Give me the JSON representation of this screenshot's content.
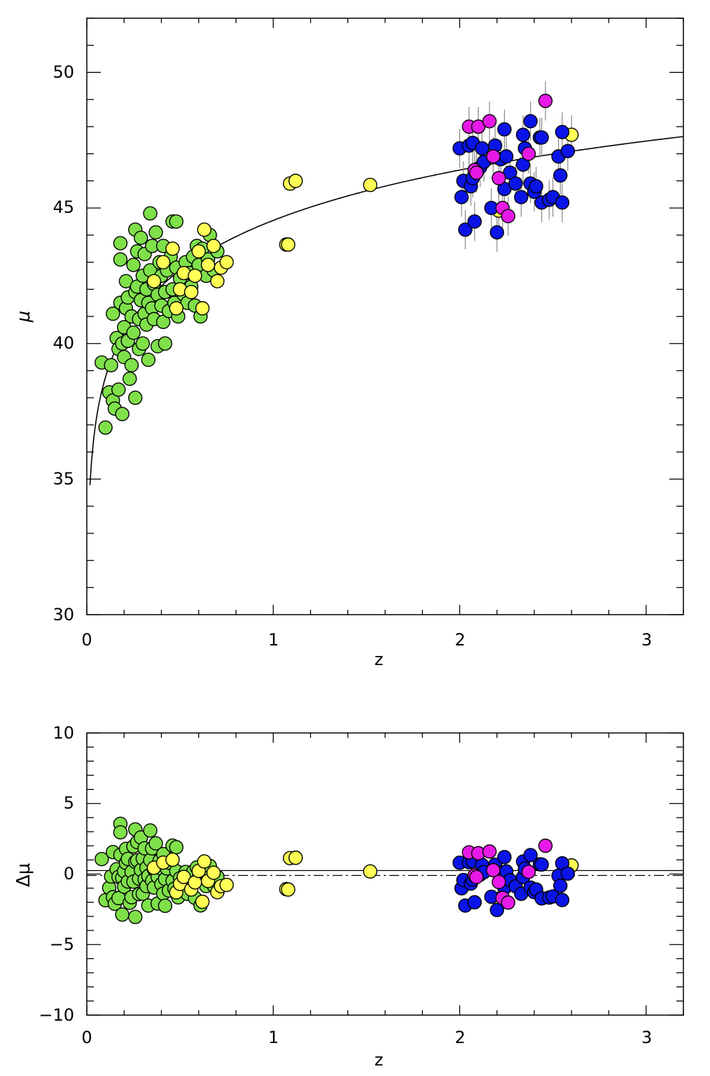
{
  "chart_data": [
    {
      "type": "scatter",
      "title": "",
      "xlabel": "z",
      "ylabel": "μ",
      "xlim": [
        0,
        3.2
      ],
      "ylim": [
        30,
        52
      ],
      "xticks": [
        "0",
        "1",
        "2",
        "3"
      ],
      "yticks": [
        "30",
        "35",
        "40",
        "45",
        "50"
      ],
      "grid": false,
      "legend": "none",
      "series": [
        {
          "color": "#7fe04a",
          "points": [
            [
              0.08,
              39.3
            ],
            [
              0.1,
              36.9
            ],
            [
              0.12,
              38.2
            ],
            [
              0.13,
              39.2
            ],
            [
              0.14,
              41.1
            ],
            [
              0.14,
              37.9
            ],
            [
              0.15,
              37.6
            ],
            [
              0.16,
              40.2
            ],
            [
              0.17,
              38.3
            ],
            [
              0.17,
              39.8
            ],
            [
              0.18,
              43.7
            ],
            [
              0.18,
              43.1
            ],
            [
              0.18,
              41.5
            ],
            [
              0.19,
              40.0
            ],
            [
              0.19,
              37.4
            ],
            [
              0.2,
              40.6
            ],
            [
              0.2,
              39.5
            ],
            [
              0.21,
              41.3
            ],
            [
              0.21,
              42.3
            ],
            [
              0.22,
              40.1
            ],
            [
              0.22,
              41.7
            ],
            [
              0.23,
              38.7
            ],
            [
              0.24,
              39.2
            ],
            [
              0.24,
              41.0
            ],
            [
              0.25,
              42.9
            ],
            [
              0.25,
              40.4
            ],
            [
              0.26,
              44.2
            ],
            [
              0.26,
              41.9
            ],
            [
              0.26,
              38.0
            ],
            [
              0.27,
              43.4
            ],
            [
              0.27,
              42.1
            ],
            [
              0.28,
              40.9
            ],
            [
              0.28,
              39.8
            ],
            [
              0.29,
              41.6
            ],
            [
              0.29,
              43.9
            ],
            [
              0.3,
              42.5
            ],
            [
              0.3,
              40.0
            ],
            [
              0.31,
              41.1
            ],
            [
              0.31,
              43.3
            ],
            [
              0.32,
              42.0
            ],
            [
              0.32,
              40.7
            ],
            [
              0.33,
              41.5
            ],
            [
              0.33,
              39.4
            ],
            [
              0.34,
              44.8
            ],
            [
              0.34,
              42.7
            ],
            [
              0.35,
              41.3
            ],
            [
              0.35,
              43.6
            ],
            [
              0.36,
              40.9
            ],
            [
              0.36,
              42.2
            ],
            [
              0.37,
              44.1
            ],
            [
              0.38,
              41.8
            ],
            [
              0.38,
              39.9
            ],
            [
              0.39,
              43.0
            ],
            [
              0.4,
              41.4
            ],
            [
              0.4,
              42.5
            ],
            [
              0.41,
              40.8
            ],
            [
              0.41,
              43.6
            ],
            [
              0.42,
              41.9
            ],
            [
              0.42,
              40.0
            ],
            [
              0.43,
              42.7
            ],
            [
              0.44,
              41.2
            ],
            [
              0.45,
              43.2
            ],
            [
              0.46,
              42.0
            ],
            [
              0.46,
              44.5
            ],
            [
              0.47,
              41.5
            ],
            [
              0.48,
              42.8
            ],
            [
              0.48,
              44.5
            ],
            [
              0.49,
              41.0
            ],
            [
              0.5,
              42.4
            ],
            [
              0.52,
              41.8
            ],
            [
              0.53,
              43.0
            ],
            [
              0.54,
              41.5
            ],
            [
              0.55,
              42.6
            ],
            [
              0.56,
              42.1
            ],
            [
              0.57,
              43.2
            ],
            [
              0.58,
              41.4
            ],
            [
              0.59,
              43.6
            ],
            [
              0.6,
              42.9
            ],
            [
              0.61,
              41.0
            ],
            [
              0.62,
              43.5
            ],
            [
              0.64,
              42.5
            ],
            [
              0.65,
              43.1
            ],
            [
              0.66,
              44.0
            ],
            [
              0.68,
              42.7
            ],
            [
              0.7,
              43.4
            ]
          ]
        },
        {
          "color": "#ffff55",
          "points": [
            [
              0.36,
              42.3
            ],
            [
              0.41,
              43.0
            ],
            [
              0.46,
              43.5
            ],
            [
              0.48,
              41.3
            ],
            [
              0.5,
              42.0
            ],
            [
              0.52,
              42.6
            ],
            [
              0.56,
              41.9
            ],
            [
              0.58,
              42.5
            ],
            [
              0.6,
              43.4
            ],
            [
              0.62,
              41.3
            ],
            [
              0.63,
              44.2
            ],
            [
              0.65,
              42.9
            ],
            [
              0.68,
              43.6
            ],
            [
              0.7,
              42.3
            ],
            [
              0.72,
              42.8
            ],
            [
              0.75,
              43.0
            ],
            [
              1.07,
              43.65
            ],
            [
              1.08,
              43.65
            ],
            [
              1.09,
              45.9
            ],
            [
              1.12,
              46.0
            ],
            [
              1.52,
              45.85
            ],
            [
              2.21,
              44.9
            ],
            [
              2.6,
              47.7
            ]
          ]
        },
        {
          "color": "#0a14e6",
          "points": [
            [
              2.0,
              47.2
            ],
            [
              2.01,
              45.4
            ],
            [
              2.02,
              46.0
            ],
            [
              2.03,
              44.2
            ],
            [
              2.05,
              47.3
            ],
            [
              2.06,
              45.8
            ],
            [
              2.07,
              46.1
            ],
            [
              2.07,
              47.4
            ],
            [
              2.08,
              44.5
            ],
            [
              2.1,
              48.0
            ],
            [
              2.11,
              46.5
            ],
            [
              2.12,
              47.2
            ],
            [
              2.13,
              46.7
            ],
            [
              2.17,
              45.0
            ],
            [
              2.19,
              47.3
            ],
            [
              2.2,
              44.1
            ],
            [
              2.22,
              46.8
            ],
            [
              2.24,
              45.7
            ],
            [
              2.24,
              47.9
            ],
            [
              2.25,
              46.9
            ],
            [
              2.27,
              46.3
            ],
            [
              2.3,
              45.9
            ],
            [
              2.33,
              45.4
            ],
            [
              2.34,
              46.6
            ],
            [
              2.34,
              47.7
            ],
            [
              2.35,
              47.2
            ],
            [
              2.38,
              48.2
            ],
            [
              2.38,
              45.9
            ],
            [
              2.4,
              45.6
            ],
            [
              2.41,
              45.8
            ],
            [
              2.43,
              47.6
            ],
            [
              2.44,
              47.6
            ],
            [
              2.44,
              45.2
            ],
            [
              2.48,
              45.3
            ],
            [
              2.5,
              45.4
            ],
            [
              2.53,
              46.9
            ],
            [
              2.54,
              46.2
            ],
            [
              2.55,
              47.8
            ],
            [
              2.55,
              45.2
            ],
            [
              2.58,
              47.1
            ]
          ]
        },
        {
          "color": "#e619e6",
          "points": [
            [
              2.05,
              48.0
            ],
            [
              2.08,
              46.4
            ],
            [
              2.09,
              46.3
            ],
            [
              2.1,
              48.0
            ],
            [
              2.16,
              48.2
            ],
            [
              2.18,
              46.9
            ],
            [
              2.21,
              46.1
            ],
            [
              2.23,
              45.0
            ],
            [
              2.26,
              44.7
            ],
            [
              2.37,
              47.0
            ],
            [
              2.46,
              48.95
            ]
          ]
        }
      ],
      "curve": "model distance modulus μ(z) for flat ΛCDM, μ(0.02)≈33.3, μ(1)≈44.1, μ(2)≈46.0, μ(3.2)≈47.2"
    },
    {
      "type": "scatter",
      "title": "",
      "xlabel": "z",
      "ylabel": "Δμ",
      "xlim": [
        0,
        3.2
      ],
      "ylim": [
        -10,
        10
      ],
      "xticks": [
        "0",
        "1",
        "2",
        "3"
      ],
      "yticks": [
        "−10",
        "−5",
        "0",
        "5",
        "10"
      ],
      "grid": false,
      "legend": "none",
      "reference_lines": [
        {
          "style": "solid",
          "y": 0.25
        },
        {
          "style": "dash-dot",
          "y": -0.1
        }
      ],
      "series": [
        {
          "color": "#7fe04a",
          "same_objects_as_panel": 1
        },
        {
          "color": "#ffff55",
          "same_objects_as_panel": 1
        },
        {
          "color": "#0a14e6",
          "same_objects_as_panel": 1
        },
        {
          "color": "#e619e6",
          "same_objects_as_panel": 1
        }
      ]
    }
  ]
}
